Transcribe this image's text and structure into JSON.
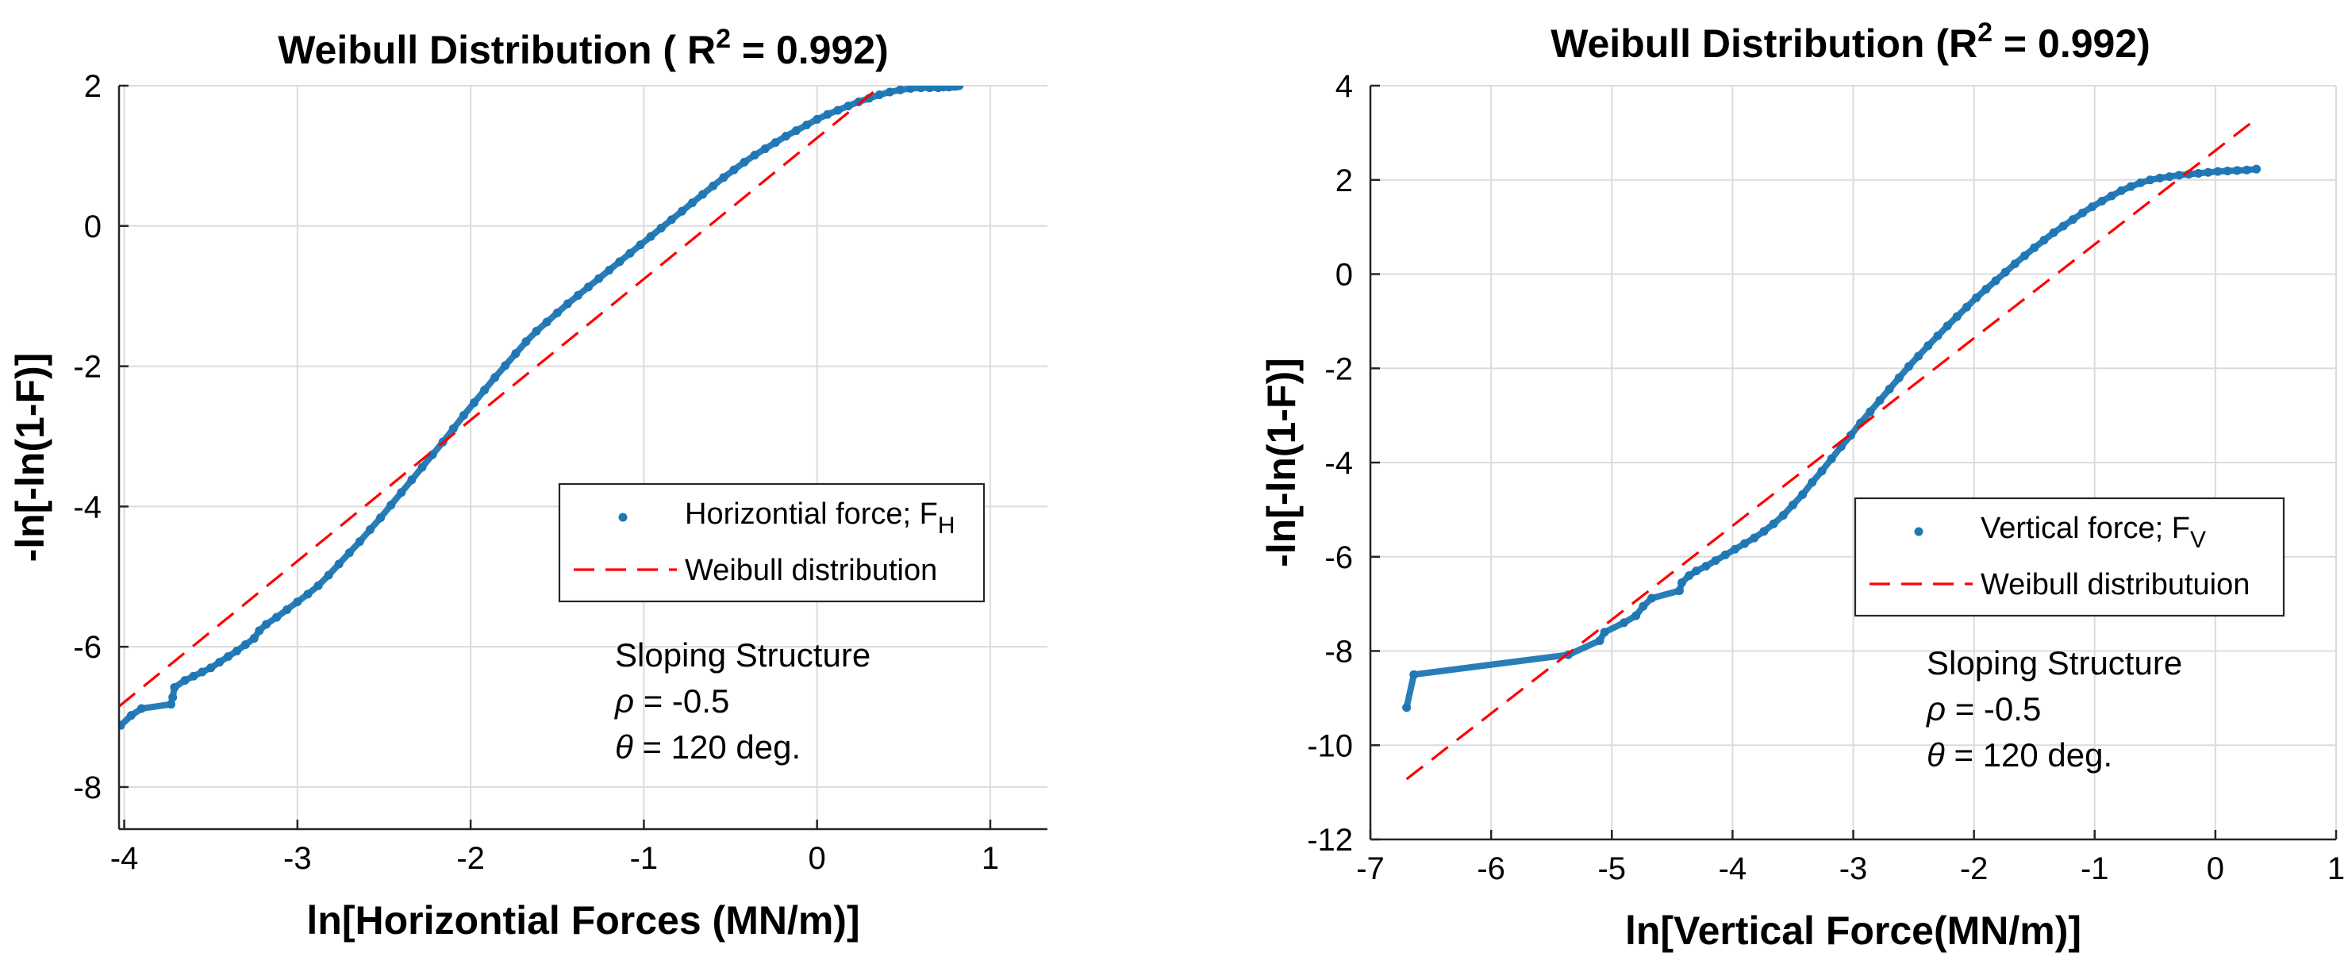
{
  "chart_data": [
    {
      "type": "scatter",
      "title": "Weibull Distribution (  R",
      "title_sup": "2",
      "title_tail": " = 0.992)",
      "xlabel": "ln[Horizontial Forces (MN/m)]",
      "ylabel": "-ln[-ln(1-F)]",
      "xlim": [
        -4.03,
        1.33
      ],
      "ylim": [
        -8.6,
        2.0
      ],
      "xticks": [
        -4,
        -3,
        -2,
        -1,
        0,
        1
      ],
      "xtick_labels": [
        "-4",
        "-3",
        "-2",
        "-1",
        "0",
        "1"
      ],
      "yticks": [
        -8,
        -6,
        -4,
        -2,
        0,
        2
      ],
      "ytick_labels": [
        "-8",
        "-6",
        "-4",
        "-2",
        "0",
        "2"
      ],
      "grid": true,
      "legend_position": "middle-right",
      "series": [
        {
          "name": "Horizontial force; F",
          "name_sub": "H",
          "kind": "points",
          "color": "#1f77b4",
          "x": [
            -4.02,
            -3.96,
            -3.9,
            -3.73,
            -3.72,
            -3.71,
            -3.65,
            -3.6,
            -3.55,
            -3.5,
            -3.45,
            -3.4,
            -3.35,
            -3.3,
            -3.25,
            -3.22,
            -3.18,
            -3.12,
            -3.06,
            -3.0,
            -2.94,
            -2.88,
            -2.82,
            -2.76,
            -2.7,
            -2.64,
            -2.58,
            -2.52,
            -2.46,
            -2.4,
            -2.34,
            -2.28,
            -2.22,
            -2.16,
            -2.1,
            -2.04,
            -1.98,
            -1.92,
            -1.86,
            -1.8,
            -1.74,
            -1.68,
            -1.62,
            -1.56,
            -1.5,
            -1.44,
            -1.38,
            -1.32,
            -1.26,
            -1.2,
            -1.14,
            -1.08,
            -1.02,
            -0.96,
            -0.9,
            -0.84,
            -0.78,
            -0.72,
            -0.66,
            -0.6,
            -0.54,
            -0.48,
            -0.42,
            -0.36,
            -0.3,
            -0.24,
            -0.18,
            -0.12,
            -0.06,
            0.0,
            0.06,
            0.12,
            0.18,
            0.24,
            0.3,
            0.36,
            0.42,
            0.48,
            0.54,
            0.6,
            0.65,
            0.7,
            0.73,
            0.76,
            0.78,
            0.8,
            0.82
          ],
          "y": [
            -7.12,
            -6.98,
            -6.88,
            -6.82,
            -6.72,
            -6.58,
            -6.48,
            -6.42,
            -6.36,
            -6.3,
            -6.22,
            -6.14,
            -6.06,
            -5.97,
            -5.88,
            -5.77,
            -5.68,
            -5.58,
            -5.47,
            -5.36,
            -5.25,
            -5.13,
            -4.98,
            -4.82,
            -4.66,
            -4.5,
            -4.33,
            -4.16,
            -3.98,
            -3.8,
            -3.62,
            -3.44,
            -3.26,
            -3.08,
            -2.89,
            -2.7,
            -2.52,
            -2.34,
            -2.16,
            -1.99,
            -1.82,
            -1.65,
            -1.5,
            -1.37,
            -1.24,
            -1.11,
            -0.99,
            -0.87,
            -0.75,
            -0.63,
            -0.51,
            -0.39,
            -0.27,
            -0.15,
            -0.03,
            0.09,
            0.21,
            0.33,
            0.45,
            0.57,
            0.69,
            0.8,
            0.91,
            1.01,
            1.1,
            1.19,
            1.28,
            1.36,
            1.44,
            1.52,
            1.59,
            1.65,
            1.71,
            1.77,
            1.82,
            1.87,
            1.91,
            1.94,
            1.96,
            1.97,
            1.97,
            1.97,
            1.98,
            1.98,
            1.99,
            1.99,
            2.0
          ]
        },
        {
          "name": "Weibull distribution",
          "kind": "line",
          "color": "#ff0000",
          "x": [
            -4.03,
            0.45
          ],
          "y": [
            -6.85,
            2.16
          ]
        }
      ],
      "annotation": [
        "Sloping Structure",
        "ρ = -0.5",
        "θ = 120 deg."
      ]
    },
    {
      "type": "scatter",
      "title": "Weibull Distribution (R",
      "title_sup": "2",
      "title_tail": " = 0.992)",
      "xlabel": "ln[Vertical Force(MN/m)]",
      "ylabel": "-ln[-ln(1-F)]",
      "xlim": [
        -7.0,
        1.0
      ],
      "ylim": [
        -12.0,
        4.0
      ],
      "xticks": [
        -7,
        -6,
        -5,
        -4,
        -3,
        -2,
        -1,
        0,
        1
      ],
      "xtick_labels": [
        "-7",
        "-6",
        "-5",
        "-4",
        "-3",
        "-2",
        "-1",
        "0",
        "1"
      ],
      "yticks": [
        -12,
        -10,
        -8,
        -6,
        -4,
        -2,
        0,
        2,
        4
      ],
      "ytick_labels": [
        "-12",
        "-10",
        "-8",
        "-6",
        "-4",
        "-2",
        "0",
        "2",
        "4"
      ],
      "grid": true,
      "legend_position": "middle-right",
      "series": [
        {
          "name": "Vertical force; F",
          "name_sub": "V",
          "kind": "points",
          "color": "#1f77b4",
          "x": [
            -6.7,
            -6.64,
            -5.36,
            -5.1,
            -5.06,
            -4.9,
            -4.8,
            -4.74,
            -4.67,
            -4.44,
            -4.42,
            -4.36,
            -4.3,
            -4.22,
            -4.14,
            -4.06,
            -3.98,
            -3.9,
            -3.82,
            -3.74,
            -3.66,
            -3.58,
            -3.5,
            -3.42,
            -3.34,
            -3.26,
            -3.18,
            -3.1,
            -3.02,
            -2.94,
            -2.86,
            -2.78,
            -2.7,
            -2.62,
            -2.54,
            -2.46,
            -2.38,
            -2.3,
            -2.22,
            -2.14,
            -2.06,
            -1.98,
            -1.9,
            -1.82,
            -1.74,
            -1.66,
            -1.58,
            -1.5,
            -1.42,
            -1.34,
            -1.26,
            -1.18,
            -1.1,
            -1.02,
            -0.94,
            -0.86,
            -0.78,
            -0.7,
            -0.62,
            -0.54,
            -0.46,
            -0.38,
            -0.3,
            -0.22,
            -0.14,
            -0.06,
            0.02,
            0.1,
            0.18,
            0.26,
            0.34
          ],
          "y": [
            -9.2,
            -8.5,
            -8.08,
            -7.78,
            -7.6,
            -7.4,
            -7.25,
            -7.05,
            -6.88,
            -6.72,
            -6.55,
            -6.4,
            -6.3,
            -6.2,
            -6.08,
            -5.96,
            -5.84,
            -5.72,
            -5.6,
            -5.46,
            -5.3,
            -5.12,
            -4.9,
            -4.68,
            -4.42,
            -4.18,
            -3.92,
            -3.66,
            -3.42,
            -3.16,
            -2.92,
            -2.68,
            -2.44,
            -2.2,
            -1.96,
            -1.74,
            -1.52,
            -1.31,
            -1.1,
            -0.9,
            -0.7,
            -0.5,
            -0.32,
            -0.14,
            0.04,
            0.22,
            0.39,
            0.56,
            0.72,
            0.88,
            1.02,
            1.16,
            1.3,
            1.43,
            1.55,
            1.66,
            1.77,
            1.86,
            1.94,
            2.0,
            2.04,
            2.07,
            2.1,
            2.12,
            2.14,
            2.16,
            2.18,
            2.19,
            2.2,
            2.21,
            2.23
          ]
        },
        {
          "name": "Weibull distributuion",
          "kind": "line",
          "color": "#ff0000",
          "x": [
            -6.7,
            0.34
          ],
          "y": [
            -10.72,
            3.3
          ]
        }
      ],
      "annotation": [
        "Sloping Structure",
        "ρ = -0.5",
        "θ = 120 deg."
      ]
    }
  ]
}
